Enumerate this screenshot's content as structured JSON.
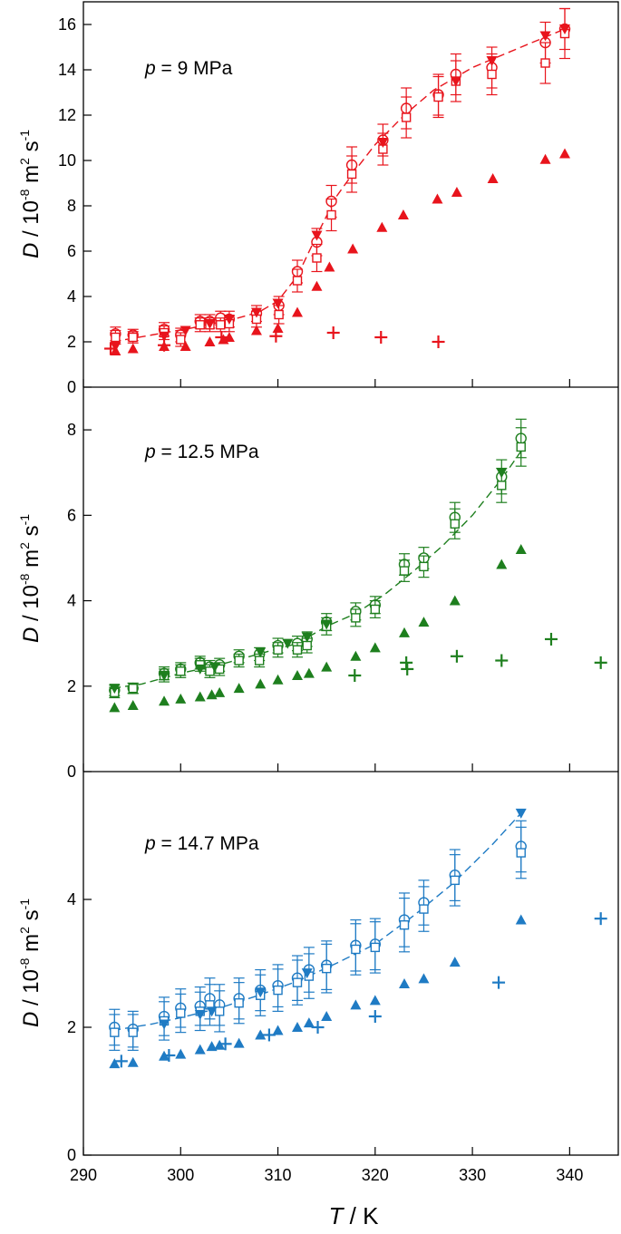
{
  "chart_data": [
    {
      "type": "scatter",
      "color": "#e8141c",
      "title": "",
      "annotation": {
        "symbol": "p",
        "text": " = 9 MPa"
      },
      "ylabel": {
        "symbol": "D",
        "pre": " / 10",
        "exp1": "-8",
        "mid": " m",
        "exp2": "2",
        "post": " s",
        "exp3": "-1"
      },
      "xlim": [
        290,
        345
      ],
      "ylim": [
        0,
        17
      ],
      "yticks": [
        0,
        2,
        4,
        6,
        8,
        10,
        12,
        14,
        16
      ],
      "ytick_labels": [
        "0",
        "2",
        "4",
        "6",
        "8",
        "10",
        "12",
        "14",
        "16"
      ],
      "series": [
        {
          "name": "open circles",
          "marker": "circle-open",
          "x": [
            293.3,
            295.1,
            298.3,
            300.0,
            302.0,
            303.0,
            304.1,
            305.0,
            307.8,
            310.1,
            312.0,
            314.0,
            315.5,
            317.6,
            320.8,
            323.2,
            326.5,
            328.3,
            332.0,
            337.5,
            339.5
          ],
          "y": [
            2.35,
            2.3,
            2.55,
            2.3,
            2.9,
            2.9,
            3.05,
            3.0,
            3.25,
            3.6,
            5.1,
            6.4,
            8.2,
            9.8,
            10.9,
            12.3,
            12.9,
            13.8,
            14.1,
            15.2,
            15.8
          ],
          "err": [
            0.3,
            0.25,
            0.3,
            0.3,
            0.3,
            0.3,
            0.3,
            0.35,
            0.35,
            0.4,
            0.5,
            0.6,
            0.7,
            0.8,
            0.7,
            0.9,
            0.9,
            0.9,
            0.9,
            0.9,
            0.9
          ]
        },
        {
          "name": "open squares",
          "marker": "square-open",
          "x": [
            293.3,
            295.1,
            298.3,
            300.0,
            302.0,
            303.0,
            304.1,
            305.0,
            307.8,
            310.1,
            312.0,
            314.0,
            315.5,
            317.6,
            320.8,
            323.2,
            326.5,
            328.3,
            332.0,
            337.5,
            339.5
          ],
          "y": [
            2.2,
            2.2,
            2.4,
            2.1,
            2.75,
            2.75,
            2.75,
            2.8,
            3.0,
            3.2,
            4.7,
            5.7,
            7.6,
            9.4,
            10.5,
            11.9,
            12.8,
            13.5,
            13.8,
            14.3,
            15.6
          ],
          "err": [
            0.3,
            0.25,
            0.3,
            0.3,
            0.3,
            0.3,
            0.3,
            0.35,
            0.35,
            0.4,
            0.5,
            0.6,
            0.7,
            0.8,
            0.7,
            0.9,
            0.9,
            0.9,
            0.9,
            0.9,
            1.1
          ]
        },
        {
          "name": "filled down-triangles",
          "marker": "tri-down-filled",
          "x": [
            293.3,
            298.3,
            300.5,
            303.0,
            305.0,
            307.8,
            310.0,
            314.0,
            320.8,
            328.3,
            332.0,
            337.5,
            339.5
          ],
          "y": [
            1.8,
            2.25,
            2.5,
            2.8,
            3.0,
            3.3,
            3.7,
            6.7,
            10.8,
            13.5,
            14.4,
            15.5,
            15.8
          ]
        },
        {
          "name": "filled up-triangles",
          "marker": "tri-up-filled",
          "x": [
            293.3,
            295.1,
            298.3,
            300.5,
            303.0,
            304.4,
            305.0,
            307.8,
            310.0,
            312.0,
            314.0,
            315.3,
            317.7,
            320.7,
            322.9,
            326.4,
            328.4,
            332.1,
            337.5,
            339.5
          ],
          "y": [
            1.6,
            1.7,
            1.8,
            1.8,
            2.0,
            2.1,
            2.2,
            2.5,
            2.6,
            3.3,
            4.45,
            5.3,
            6.1,
            7.05,
            7.6,
            8.3,
            8.6,
            9.2,
            10.05,
            10.3
          ]
        },
        {
          "name": "plus",
          "marker": "plus",
          "x": [
            292.8,
            298.3,
            304.2,
            309.8,
            315.7,
            320.6,
            326.5
          ],
          "y": [
            1.7,
            1.85,
            2.2,
            2.25,
            2.4,
            2.2,
            2.0
          ]
        }
      ],
      "fit": {
        "style": "dashed",
        "x": [
          293,
          297,
          301,
          305,
          308,
          310,
          312,
          314,
          316,
          318,
          320,
          323,
          326,
          330,
          335,
          339.5
        ],
        "y": [
          2.0,
          2.3,
          2.6,
          2.95,
          3.3,
          3.8,
          4.9,
          6.7,
          8.4,
          9.6,
          10.7,
          12.0,
          13.1,
          14.1,
          15.0,
          15.8
        ]
      }
    },
    {
      "type": "scatter",
      "color": "#1e7f1e",
      "title": "",
      "annotation": {
        "symbol": "p",
        "text": " = 12.5 MPa"
      },
      "ylabel": {
        "symbol": "D",
        "pre": " / 10",
        "exp1": "-8",
        "mid": " m",
        "exp2": "2",
        "post": " s",
        "exp3": "-1"
      },
      "xlim": [
        290,
        345
      ],
      "ylim": [
        0,
        9
      ],
      "yticks": [
        0,
        2,
        4,
        6,
        8
      ],
      "ytick_labels": [
        "0",
        "2",
        "4",
        "6",
        "8"
      ],
      "series": [
        {
          "name": "open circles",
          "marker": "circle-open",
          "x": [
            293.2,
            295.1,
            298.3,
            300.0,
            302.0,
            303.0,
            304.0,
            306.0,
            308.1,
            310.0,
            312.0,
            313.0,
            315.0,
            318.0,
            320.0,
            323.0,
            325.0,
            328.2,
            333.0,
            335.0
          ],
          "y": [
            1.9,
            1.95,
            2.3,
            2.4,
            2.55,
            2.45,
            2.5,
            2.7,
            2.75,
            2.95,
            3.0,
            3.1,
            3.5,
            3.75,
            3.9,
            4.85,
            5.0,
            5.95,
            6.9,
            7.8
          ],
          "err": [
            0.12,
            0.12,
            0.15,
            0.15,
            0.15,
            0.15,
            0.15,
            0.15,
            0.15,
            0.17,
            0.17,
            0.17,
            0.2,
            0.2,
            0.2,
            0.25,
            0.25,
            0.35,
            0.4,
            0.45
          ]
        },
        {
          "name": "open squares",
          "marker": "square-open",
          "x": [
            293.2,
            295.1,
            298.3,
            300.0,
            302.0,
            303.0,
            304.0,
            306.0,
            308.1,
            310.0,
            312.0,
            313.0,
            315.0,
            318.0,
            320.0,
            323.0,
            325.0,
            328.2,
            333.0,
            335.0
          ],
          "y": [
            1.85,
            1.95,
            2.25,
            2.35,
            2.5,
            2.35,
            2.4,
            2.6,
            2.6,
            2.85,
            2.85,
            2.95,
            3.4,
            3.6,
            3.8,
            4.7,
            4.8,
            5.8,
            6.7,
            7.6
          ],
          "err": [
            0.12,
            0.12,
            0.15,
            0.15,
            0.15,
            0.15,
            0.15,
            0.15,
            0.15,
            0.17,
            0.17,
            0.17,
            0.2,
            0.2,
            0.2,
            0.25,
            0.25,
            0.35,
            0.4,
            0.45
          ]
        },
        {
          "name": "filled down-triangles",
          "marker": "tri-down-filled",
          "x": [
            293.2,
            298.3,
            302.0,
            303.5,
            308.2,
            311.0,
            313.0,
            315.0,
            333.0
          ],
          "y": [
            1.95,
            2.25,
            2.4,
            2.45,
            2.8,
            3.0,
            3.15,
            3.45,
            7.0
          ]
        },
        {
          "name": "filled up-triangles",
          "marker": "tri-up-filled",
          "x": [
            293.2,
            295.1,
            298.3,
            300.0,
            302.0,
            303.2,
            304.0,
            306.0,
            308.2,
            310.0,
            312.0,
            313.2,
            315.0,
            318.0,
            320.0,
            323.0,
            325.0,
            328.2,
            333.0,
            335.0
          ],
          "y": [
            1.5,
            1.55,
            1.65,
            1.7,
            1.75,
            1.8,
            1.85,
            1.95,
            2.05,
            2.15,
            2.25,
            2.3,
            2.45,
            2.7,
            2.9,
            3.25,
            3.5,
            4.0,
            4.85,
            5.2
          ]
        },
        {
          "name": "plus",
          "marker": "plus",
          "x": [
            317.9,
            323.2,
            323.3,
            328.4,
            333.0,
            338.1,
            343.2
          ],
          "y": [
            2.25,
            2.55,
            2.4,
            2.7,
            2.6,
            3.1,
            2.55
          ]
        }
      ],
      "fit": {
        "style": "dashed",
        "x": [
          293,
          296,
          300,
          304,
          308,
          312,
          315,
          318,
          321,
          324,
          327,
          330,
          333,
          335
        ],
        "y": [
          1.95,
          2.05,
          2.3,
          2.5,
          2.75,
          3.0,
          3.4,
          3.7,
          4.15,
          4.7,
          5.3,
          6.0,
          6.85,
          7.5
        ]
      }
    },
    {
      "type": "scatter",
      "color": "#1f7bc4",
      "title": "",
      "annotation": {
        "symbol": "p",
        "text": " = 14.7 MPa"
      },
      "ylabel": {
        "symbol": "D",
        "pre": " / 10",
        "exp1": "-8",
        "mid": " m",
        "exp2": "2",
        "post": " s",
        "exp3": "-1"
      },
      "xlabel": {
        "symbol": "T",
        "text": " / K"
      },
      "xlim": [
        290,
        345
      ],
      "xticks": [
        290,
        300,
        310,
        320,
        330,
        340
      ],
      "xtick_labels": [
        "290",
        "300",
        "310",
        "320",
        "330",
        "340"
      ],
      "ylim": [
        0,
        6
      ],
      "yticks": [
        0,
        2,
        4
      ],
      "ytick_labels": [
        "0",
        "2",
        "4"
      ],
      "series": [
        {
          "name": "open circles",
          "marker": "circle-open",
          "x": [
            293.2,
            295.1,
            298.3,
            300.0,
            302.0,
            303.0,
            304.0,
            306.0,
            308.2,
            310.0,
            312.0,
            313.2,
            315.0,
            318.0,
            320.0,
            323.0,
            325.0,
            328.2,
            335.0
          ],
          "y": [
            2.0,
            1.97,
            2.17,
            2.3,
            2.33,
            2.45,
            2.35,
            2.45,
            2.58,
            2.65,
            2.77,
            2.9,
            2.97,
            3.28,
            3.3,
            3.68,
            3.95,
            4.38,
            4.83
          ],
          "err": [
            0.28,
            0.28,
            0.3,
            0.3,
            0.3,
            0.32,
            0.32,
            0.32,
            0.32,
            0.33,
            0.35,
            0.35,
            0.38,
            0.4,
            0.4,
            0.42,
            0.35,
            0.4,
            0.4
          ]
        },
        {
          "name": "open squares",
          "marker": "square-open",
          "x": [
            293.2,
            295.1,
            298.3,
            300.0,
            302.0,
            303.0,
            304.0,
            306.0,
            308.2,
            310.0,
            312.0,
            313.2,
            315.0,
            318.0,
            320.0,
            323.0,
            325.0,
            328.2,
            335.0
          ],
          "y": [
            1.92,
            1.92,
            2.1,
            2.22,
            2.25,
            2.35,
            2.25,
            2.38,
            2.5,
            2.58,
            2.7,
            2.8,
            2.92,
            3.22,
            3.25,
            3.6,
            3.85,
            4.3,
            4.73
          ],
          "err": [
            0.28,
            0.28,
            0.3,
            0.3,
            0.3,
            0.32,
            0.32,
            0.32,
            0.32,
            0.33,
            0.35,
            0.35,
            0.38,
            0.4,
            0.4,
            0.42,
            0.35,
            0.4,
            0.4
          ]
        },
        {
          "name": "filled down-triangles",
          "marker": "tri-down-filled",
          "x": [
            298.3,
            302.0,
            303.2,
            308.2,
            313.0,
            335.0
          ],
          "y": [
            2.05,
            2.2,
            2.25,
            2.55,
            2.85,
            5.35
          ]
        },
        {
          "name": "filled up-triangles",
          "marker": "tri-up-filled",
          "x": [
            293.2,
            295.1,
            298.3,
            300.0,
            302.0,
            303.2,
            304.0,
            306.0,
            308.2,
            310.0,
            312.0,
            313.2,
            315.0,
            318.0,
            320.0,
            323.0,
            325.0,
            328.2,
            335.0
          ],
          "y": [
            1.43,
            1.45,
            1.55,
            1.58,
            1.65,
            1.7,
            1.72,
            1.75,
            1.88,
            1.95,
            2.0,
            2.07,
            2.17,
            2.35,
            2.42,
            2.68,
            2.76,
            3.02,
            3.68
          ]
        },
        {
          "name": "plus",
          "marker": "plus",
          "x": [
            293.9,
            298.8,
            304.6,
            309.1,
            314.1,
            320.0,
            332.7,
            343.2
          ],
          "y": [
            1.47,
            1.56,
            1.74,
            1.88,
            2.0,
            2.17,
            2.7,
            3.7
          ]
        }
      ],
      "fit": {
        "style": "dashed",
        "x": [
          293,
          297,
          300,
          304,
          308,
          312,
          316,
          320,
          324,
          328,
          332,
          335
        ],
        "y": [
          1.95,
          2.05,
          2.15,
          2.3,
          2.5,
          2.72,
          3.0,
          3.3,
          3.75,
          4.25,
          4.85,
          5.35
        ]
      }
    }
  ]
}
